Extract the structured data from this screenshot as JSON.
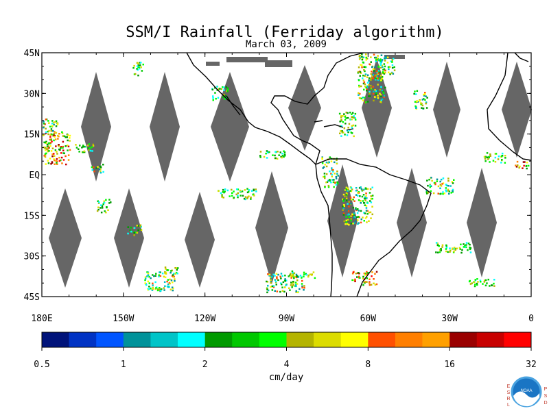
{
  "title": "SSM/I Rainfall (Ferriday algorithm)",
  "date": "March 03, 2009",
  "y_ticks": [
    "45N",
    "30N",
    "15N",
    "EQ",
    "15S",
    "30S",
    "45S"
  ],
  "x_ticks": [
    "180E",
    "150W",
    "120W",
    "90W",
    "60W",
    "30W",
    "0"
  ],
  "colorbar": {
    "unit": "cm/day",
    "labels": [
      "0.5",
      "1",
      "2",
      "4",
      "8",
      "16",
      "32"
    ],
    "colors": [
      "#00137a",
      "#0033c4",
      "#0055ff",
      "#00929a",
      "#00c4c8",
      "#00ffff",
      "#009a00",
      "#00c800",
      "#00ff00",
      "#b4b400",
      "#dcdc00",
      "#ffff00",
      "#ff5000",
      "#ff7f00",
      "#ffa000",
      "#9a0000",
      "#c80000",
      "#ff0000"
    ]
  },
  "map": {
    "extent": {
      "lon": [
        -180,
        0
      ],
      "lat": [
        -45,
        45
      ]
    },
    "ocean_color": "#ffffff",
    "coast_color": "#000000",
    "no_data_color": "#666666"
  },
  "logo": {
    "left_letters": "ESRL",
    "right_letters": "PSD",
    "emblem_text": "NOAA"
  }
}
